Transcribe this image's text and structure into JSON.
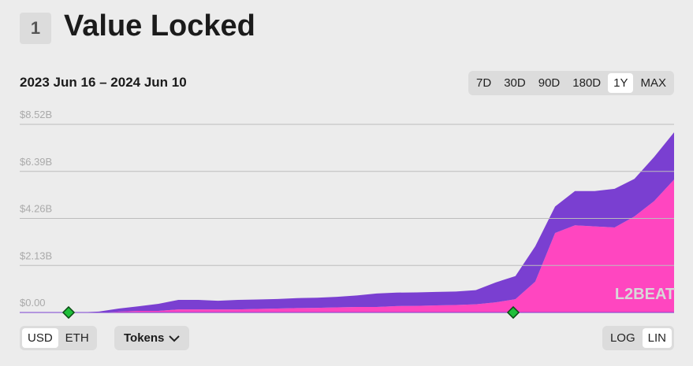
{
  "header": {
    "number": "1",
    "title": "Value Locked"
  },
  "range_label": "2023 Jun 16 – 2024 Jun 10",
  "range_buttons": [
    "7D",
    "30D",
    "90D",
    "180D",
    "1Y",
    "MAX"
  ],
  "range_selected": 4,
  "unit_buttons": [
    "USD",
    "ETH"
  ],
  "unit_selected": 0,
  "tokens_button": "Tokens",
  "scale_buttons": [
    "LOG",
    "LIN"
  ],
  "scale_selected": 1,
  "chart_data": {
    "type": "area",
    "stacked": true,
    "watermark": "L2BEAT",
    "ylim": [
      0,
      8.52
    ],
    "yticks": [
      {
        "value": 0,
        "label": "$0.00"
      },
      {
        "value": 2.13,
        "label": "$2.13B"
      },
      {
        "value": 4.26,
        "label": "$4.26B"
      },
      {
        "value": 6.39,
        "label": "$6.39B"
      },
      {
        "value": 8.52,
        "label": "$8.52B"
      }
    ],
    "grid": true,
    "series": [
      {
        "color": "#ff46c0",
        "values": [
          0,
          0,
          0,
          0,
          0,
          0.04,
          0.07,
          0.07,
          0.14,
          0.14,
          0.14,
          0.14,
          0.16,
          0.18,
          0.2,
          0.21,
          0.23,
          0.25,
          0.25,
          0.29,
          0.3,
          0.32,
          0.34,
          0.37,
          0.46,
          0.6,
          1.4,
          3.6,
          3.95,
          3.9,
          3.85,
          4.35,
          5.05,
          6.02
        ]
      },
      {
        "color": "#7a3fd1",
        "values": [
          0,
          0,
          0,
          0,
          0.04,
          0.14,
          0.21,
          0.32,
          0.43,
          0.43,
          0.39,
          0.43,
          0.43,
          0.43,
          0.45,
          0.46,
          0.48,
          0.52,
          0.61,
          0.61,
          0.61,
          0.61,
          0.61,
          0.64,
          0.9,
          1.05,
          1.6,
          1.2,
          1.55,
          1.6,
          1.75,
          1.7,
          2.0,
          2.14
        ]
      }
    ]
  }
}
